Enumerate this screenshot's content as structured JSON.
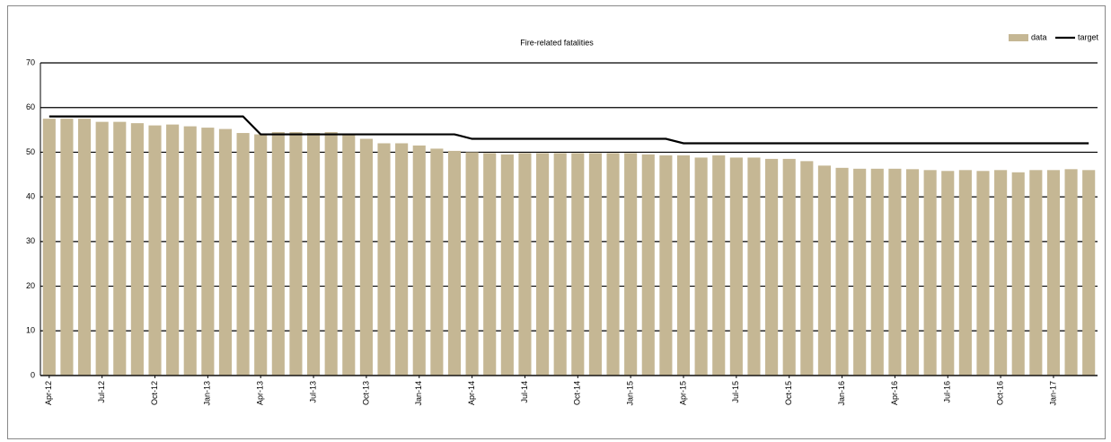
{
  "chart_data": {
    "type": "bar",
    "title": "Fire-related fatalities",
    "categories": [
      "Apr-12",
      null,
      null,
      "Jul-12",
      null,
      null,
      "Oct-12",
      null,
      null,
      "Jan-13",
      null,
      null,
      "Apr-13",
      null,
      null,
      "Jul-13",
      null,
      null,
      "Oct-13",
      null,
      null,
      "Jan-14",
      null,
      null,
      "Apr-14",
      null,
      null,
      "Jul-14",
      null,
      null,
      "Oct-14",
      null,
      null,
      "Jan-15",
      null,
      null,
      "Apr-15",
      null,
      null,
      "Jul-15",
      null,
      null,
      "Oct-15",
      null,
      null,
      "Jan-16",
      null,
      null,
      "Apr-16",
      null,
      null,
      "Jul-16",
      null,
      null,
      "Oct-16",
      null,
      null,
      "Jan-17",
      null,
      null
    ],
    "series": [
      {
        "name": "data",
        "type": "bar",
        "color": "#c5b794",
        "values": [
          57.5,
          57.5,
          57.5,
          56.8,
          56.8,
          56.5,
          56,
          56.2,
          55.8,
          55.5,
          55.2,
          54.3,
          54,
          54.5,
          54.5,
          54.3,
          54.5,
          54,
          53,
          52,
          52,
          51.5,
          50.8,
          50.3,
          50,
          49.8,
          49.5,
          49.8,
          49.8,
          49.8,
          49.8,
          49.8,
          49.8,
          49.8,
          49.5,
          49.3,
          49.3,
          48.8,
          49.3,
          48.8,
          48.8,
          48.5,
          48.5,
          48,
          47,
          46.5,
          46.3,
          46.3,
          46.3,
          46.2,
          46,
          45.8,
          46,
          45.8,
          46,
          45.5,
          46,
          46,
          46.2,
          46
        ]
      },
      {
        "name": "target",
        "type": "line",
        "color": "#000000",
        "values": [
          58,
          58,
          58,
          58,
          58,
          58,
          58,
          58,
          58,
          58,
          58,
          58,
          54,
          54,
          54,
          54,
          54,
          54,
          54,
          54,
          54,
          54,
          54,
          54,
          53,
          53,
          53,
          53,
          53,
          53,
          53,
          53,
          53,
          53,
          53,
          53,
          52,
          52,
          52,
          52,
          52,
          52,
          52,
          52,
          52,
          52,
          52,
          52,
          52,
          52,
          52,
          52,
          52,
          52,
          52,
          52,
          52,
          52,
          52,
          52
        ]
      }
    ],
    "ylim": [
      0,
      70
    ],
    "yticks": [
      0,
      10,
      20,
      30,
      40,
      50,
      60,
      70
    ],
    "grid": true,
    "legend": "top-right"
  }
}
